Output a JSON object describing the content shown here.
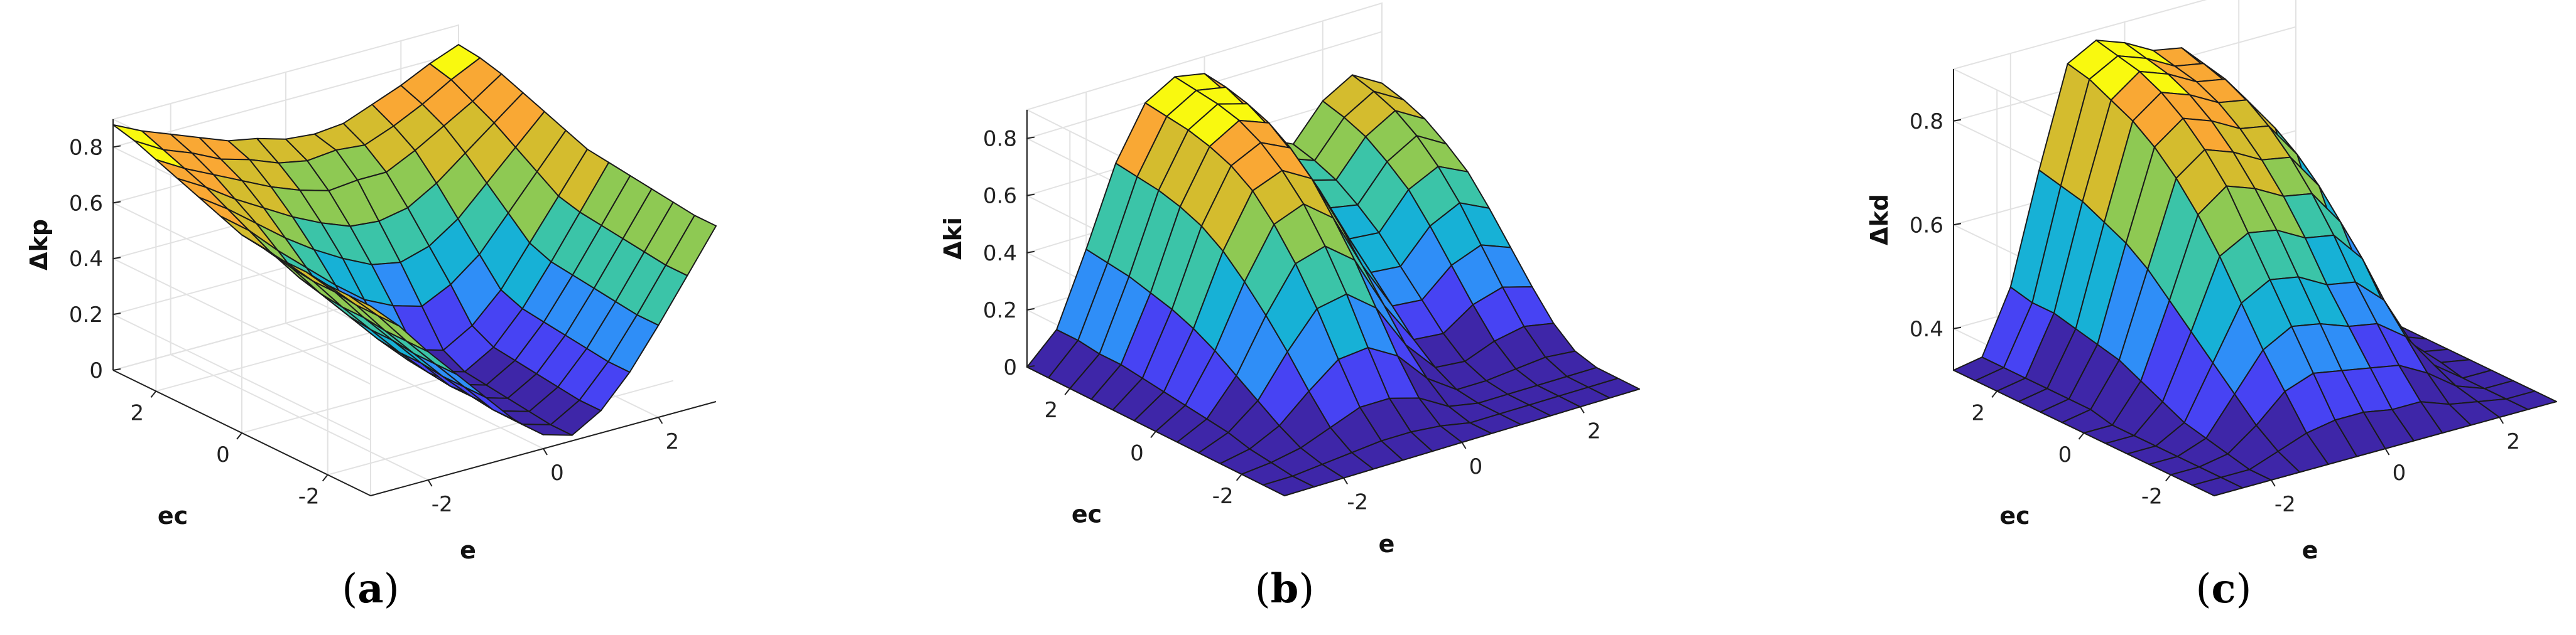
{
  "colormap": [
    "#3e26a8",
    "#4743f3",
    "#2f8ef7",
    "#17b1d6",
    "#3bc4a8",
    "#8ec953",
    "#d4bc2e",
    "#f9a834",
    "#f9f90f"
  ],
  "chart_data": [
    {
      "type": "surface",
      "caption": "a",
      "zlabel": "Δkp",
      "xlabel": "e",
      "ylabel": "ec",
      "xlim": [
        -3,
        3
      ],
      "ylim": [
        -3,
        3
      ],
      "zlim": [
        0,
        0.9
      ],
      "xticks": [
        "-2",
        "0",
        "2"
      ],
      "yticks": [
        "-2",
        "0",
        "2"
      ],
      "zticks": [
        "0",
        "0.2",
        "0.4",
        "0.6",
        "0.8"
      ],
      "z": [
        [
          0.88,
          0.83,
          0.79,
          0.75,
          0.71,
          0.69,
          0.66,
          0.65,
          0.66,
          0.7,
          0.74,
          0.79,
          0.83
        ],
        [
          0.86,
          0.8,
          0.76,
          0.71,
          0.68,
          0.64,
          0.62,
          0.63,
          0.62,
          0.66,
          0.71,
          0.77,
          0.82
        ],
        [
          0.83,
          0.77,
          0.72,
          0.67,
          0.62,
          0.58,
          0.55,
          0.56,
          0.56,
          0.61,
          0.67,
          0.73,
          0.8
        ],
        [
          0.8,
          0.74,
          0.67,
          0.61,
          0.55,
          0.5,
          0.46,
          0.45,
          0.47,
          0.53,
          0.61,
          0.69,
          0.77
        ],
        [
          0.77,
          0.7,
          0.62,
          0.54,
          0.47,
          0.41,
          0.36,
          0.34,
          0.37,
          0.44,
          0.54,
          0.64,
          0.74
        ],
        [
          0.74,
          0.66,
          0.56,
          0.47,
          0.38,
          0.3,
          0.25,
          0.22,
          0.27,
          0.35,
          0.47,
          0.59,
          0.71
        ],
        [
          0.71,
          0.62,
          0.5,
          0.4,
          0.29,
          0.2,
          0.13,
          0.1,
          0.16,
          0.26,
          0.4,
          0.54,
          0.68
        ],
        [
          0.7,
          0.6,
          0.48,
          0.37,
          0.26,
          0.16,
          0.09,
          0.06,
          0.12,
          0.23,
          0.37,
          0.52,
          0.67
        ],
        [
          0.69,
          0.59,
          0.47,
          0.36,
          0.25,
          0.15,
          0.08,
          0.05,
          0.11,
          0.22,
          0.36,
          0.51,
          0.66
        ],
        [
          0.69,
          0.59,
          0.47,
          0.36,
          0.25,
          0.14,
          0.07,
          0.04,
          0.1,
          0.21,
          0.35,
          0.5,
          0.65
        ],
        [
          0.68,
          0.58,
          0.46,
          0.35,
          0.24,
          0.14,
          0.06,
          0.03,
          0.09,
          0.2,
          0.34,
          0.49,
          0.64
        ],
        [
          0.68,
          0.58,
          0.46,
          0.35,
          0.24,
          0.13,
          0.05,
          0.02,
          0.08,
          0.19,
          0.33,
          0.48,
          0.63
        ],
        [
          0.68,
          0.58,
          0.46,
          0.35,
          0.24,
          0.13,
          0.05,
          0.02,
          0.08,
          0.19,
          0.33,
          0.48,
          0.63
        ]
      ]
    },
    {
      "type": "surface",
      "caption": "b",
      "zlabel": "Δki",
      "xlabel": "e",
      "ylabel": "ec",
      "xlim": [
        -3,
        3
      ],
      "ylim": [
        -3,
        3
      ],
      "zlim": [
        0,
        0.9
      ],
      "xticks": [
        "-2",
        "0",
        "2"
      ],
      "yticks": [
        "-2",
        "0",
        "2"
      ],
      "zticks": [
        "0",
        "0.2",
        "0.4",
        "0.6",
        "0.8"
      ],
      "z": [
        [
          0.0,
          0.1,
          0.35,
          0.62,
          0.8,
          0.86,
          0.84,
          0.72,
          0.55,
          0.5,
          0.62,
          0.68,
          0.62
        ],
        [
          0.0,
          0.1,
          0.34,
          0.61,
          0.79,
          0.85,
          0.83,
          0.7,
          0.52,
          0.48,
          0.6,
          0.66,
          0.6
        ],
        [
          0.0,
          0.09,
          0.33,
          0.6,
          0.78,
          0.84,
          0.81,
          0.67,
          0.48,
          0.45,
          0.57,
          0.63,
          0.57
        ],
        [
          0.0,
          0.09,
          0.31,
          0.58,
          0.76,
          0.82,
          0.78,
          0.62,
          0.42,
          0.4,
          0.52,
          0.58,
          0.52
        ],
        [
          0.0,
          0.08,
          0.29,
          0.55,
          0.73,
          0.78,
          0.73,
          0.55,
          0.35,
          0.34,
          0.46,
          0.51,
          0.46
        ],
        [
          0.0,
          0.07,
          0.26,
          0.5,
          0.68,
          0.72,
          0.66,
          0.46,
          0.27,
          0.26,
          0.37,
          0.42,
          0.37
        ],
        [
          0.0,
          0.06,
          0.22,
          0.43,
          0.6,
          0.64,
          0.56,
          0.36,
          0.19,
          0.18,
          0.27,
          0.31,
          0.27
        ],
        [
          0.0,
          0.05,
          0.17,
          0.35,
          0.5,
          0.53,
          0.45,
          0.26,
          0.11,
          0.1,
          0.17,
          0.2,
          0.17
        ],
        [
          0.0,
          0.04,
          0.12,
          0.26,
          0.38,
          0.4,
          0.32,
          0.16,
          0.05,
          0.04,
          0.08,
          0.1,
          0.08
        ],
        [
          0.0,
          0.02,
          0.07,
          0.16,
          0.24,
          0.25,
          0.19,
          0.08,
          0.01,
          0.01,
          0.02,
          0.03,
          0.02
        ],
        [
          0.0,
          0.01,
          0.03,
          0.07,
          0.11,
          0.11,
          0.08,
          0.02,
          0.0,
          0.0,
          0.0,
          0.0,
          0.0
        ],
        [
          0.0,
          0.0,
          0.01,
          0.02,
          0.03,
          0.03,
          0.02,
          0.0,
          0.0,
          0.0,
          0.0,
          0.0,
          0.0
        ],
        [
          0.0,
          0.0,
          0.0,
          0.0,
          0.0,
          0.0,
          0.0,
          0.0,
          0.0,
          0.0,
          0.0,
          0.0,
          0.0
        ]
      ]
    },
    {
      "type": "surface",
      "caption": "c",
      "zlabel": "Δkd",
      "xlabel": "e",
      "ylabel": "ec",
      "xlim": [
        -3,
        3
      ],
      "ylim": [
        -3,
        3
      ],
      "zlim": [
        0.32,
        0.9
      ],
      "xticks": [
        "-2",
        "0",
        "2"
      ],
      "yticks": [
        "-2",
        "0",
        "2"
      ],
      "zticks": [
        "0.4",
        "0.6",
        "0.8"
      ],
      "z": [
        [
          0.32,
          0.33,
          0.45,
          0.66,
          0.85,
          0.88,
          0.86,
          0.83,
          0.82,
          0.76,
          0.54,
          0.36,
          0.32
        ],
        [
          0.32,
          0.33,
          0.44,
          0.65,
          0.84,
          0.87,
          0.85,
          0.82,
          0.81,
          0.75,
          0.53,
          0.36,
          0.32
        ],
        [
          0.32,
          0.33,
          0.44,
          0.64,
          0.82,
          0.86,
          0.84,
          0.81,
          0.8,
          0.73,
          0.52,
          0.35,
          0.32
        ],
        [
          0.32,
          0.33,
          0.43,
          0.62,
          0.8,
          0.84,
          0.82,
          0.79,
          0.78,
          0.71,
          0.51,
          0.35,
          0.32
        ],
        [
          0.32,
          0.33,
          0.42,
          0.6,
          0.77,
          0.81,
          0.79,
          0.76,
          0.75,
          0.68,
          0.49,
          0.35,
          0.32
        ],
        [
          0.32,
          0.33,
          0.41,
          0.57,
          0.73,
          0.77,
          0.75,
          0.72,
          0.71,
          0.64,
          0.47,
          0.34,
          0.32
        ],
        [
          0.32,
          0.32,
          0.39,
          0.53,
          0.68,
          0.72,
          0.7,
          0.67,
          0.66,
          0.59,
          0.44,
          0.34,
          0.32
        ],
        [
          0.32,
          0.32,
          0.37,
          0.49,
          0.62,
          0.65,
          0.64,
          0.61,
          0.6,
          0.54,
          0.41,
          0.33,
          0.32
        ],
        [
          0.32,
          0.32,
          0.35,
          0.45,
          0.55,
          0.58,
          0.57,
          0.54,
          0.53,
          0.48,
          0.38,
          0.33,
          0.32
        ],
        [
          0.32,
          0.32,
          0.34,
          0.41,
          0.48,
          0.51,
          0.5,
          0.48,
          0.47,
          0.43,
          0.36,
          0.32,
          0.32
        ],
        [
          0.32,
          0.32,
          0.33,
          0.37,
          0.42,
          0.44,
          0.43,
          0.42,
          0.41,
          0.38,
          0.34,
          0.32,
          0.32
        ],
        [
          0.32,
          0.32,
          0.32,
          0.34,
          0.36,
          0.37,
          0.37,
          0.36,
          0.36,
          0.34,
          0.33,
          0.32,
          0.32
        ],
        [
          0.32,
          0.32,
          0.32,
          0.32,
          0.32,
          0.32,
          0.32,
          0.32,
          0.32,
          0.32,
          0.32,
          0.32,
          0.32
        ]
      ]
    }
  ]
}
